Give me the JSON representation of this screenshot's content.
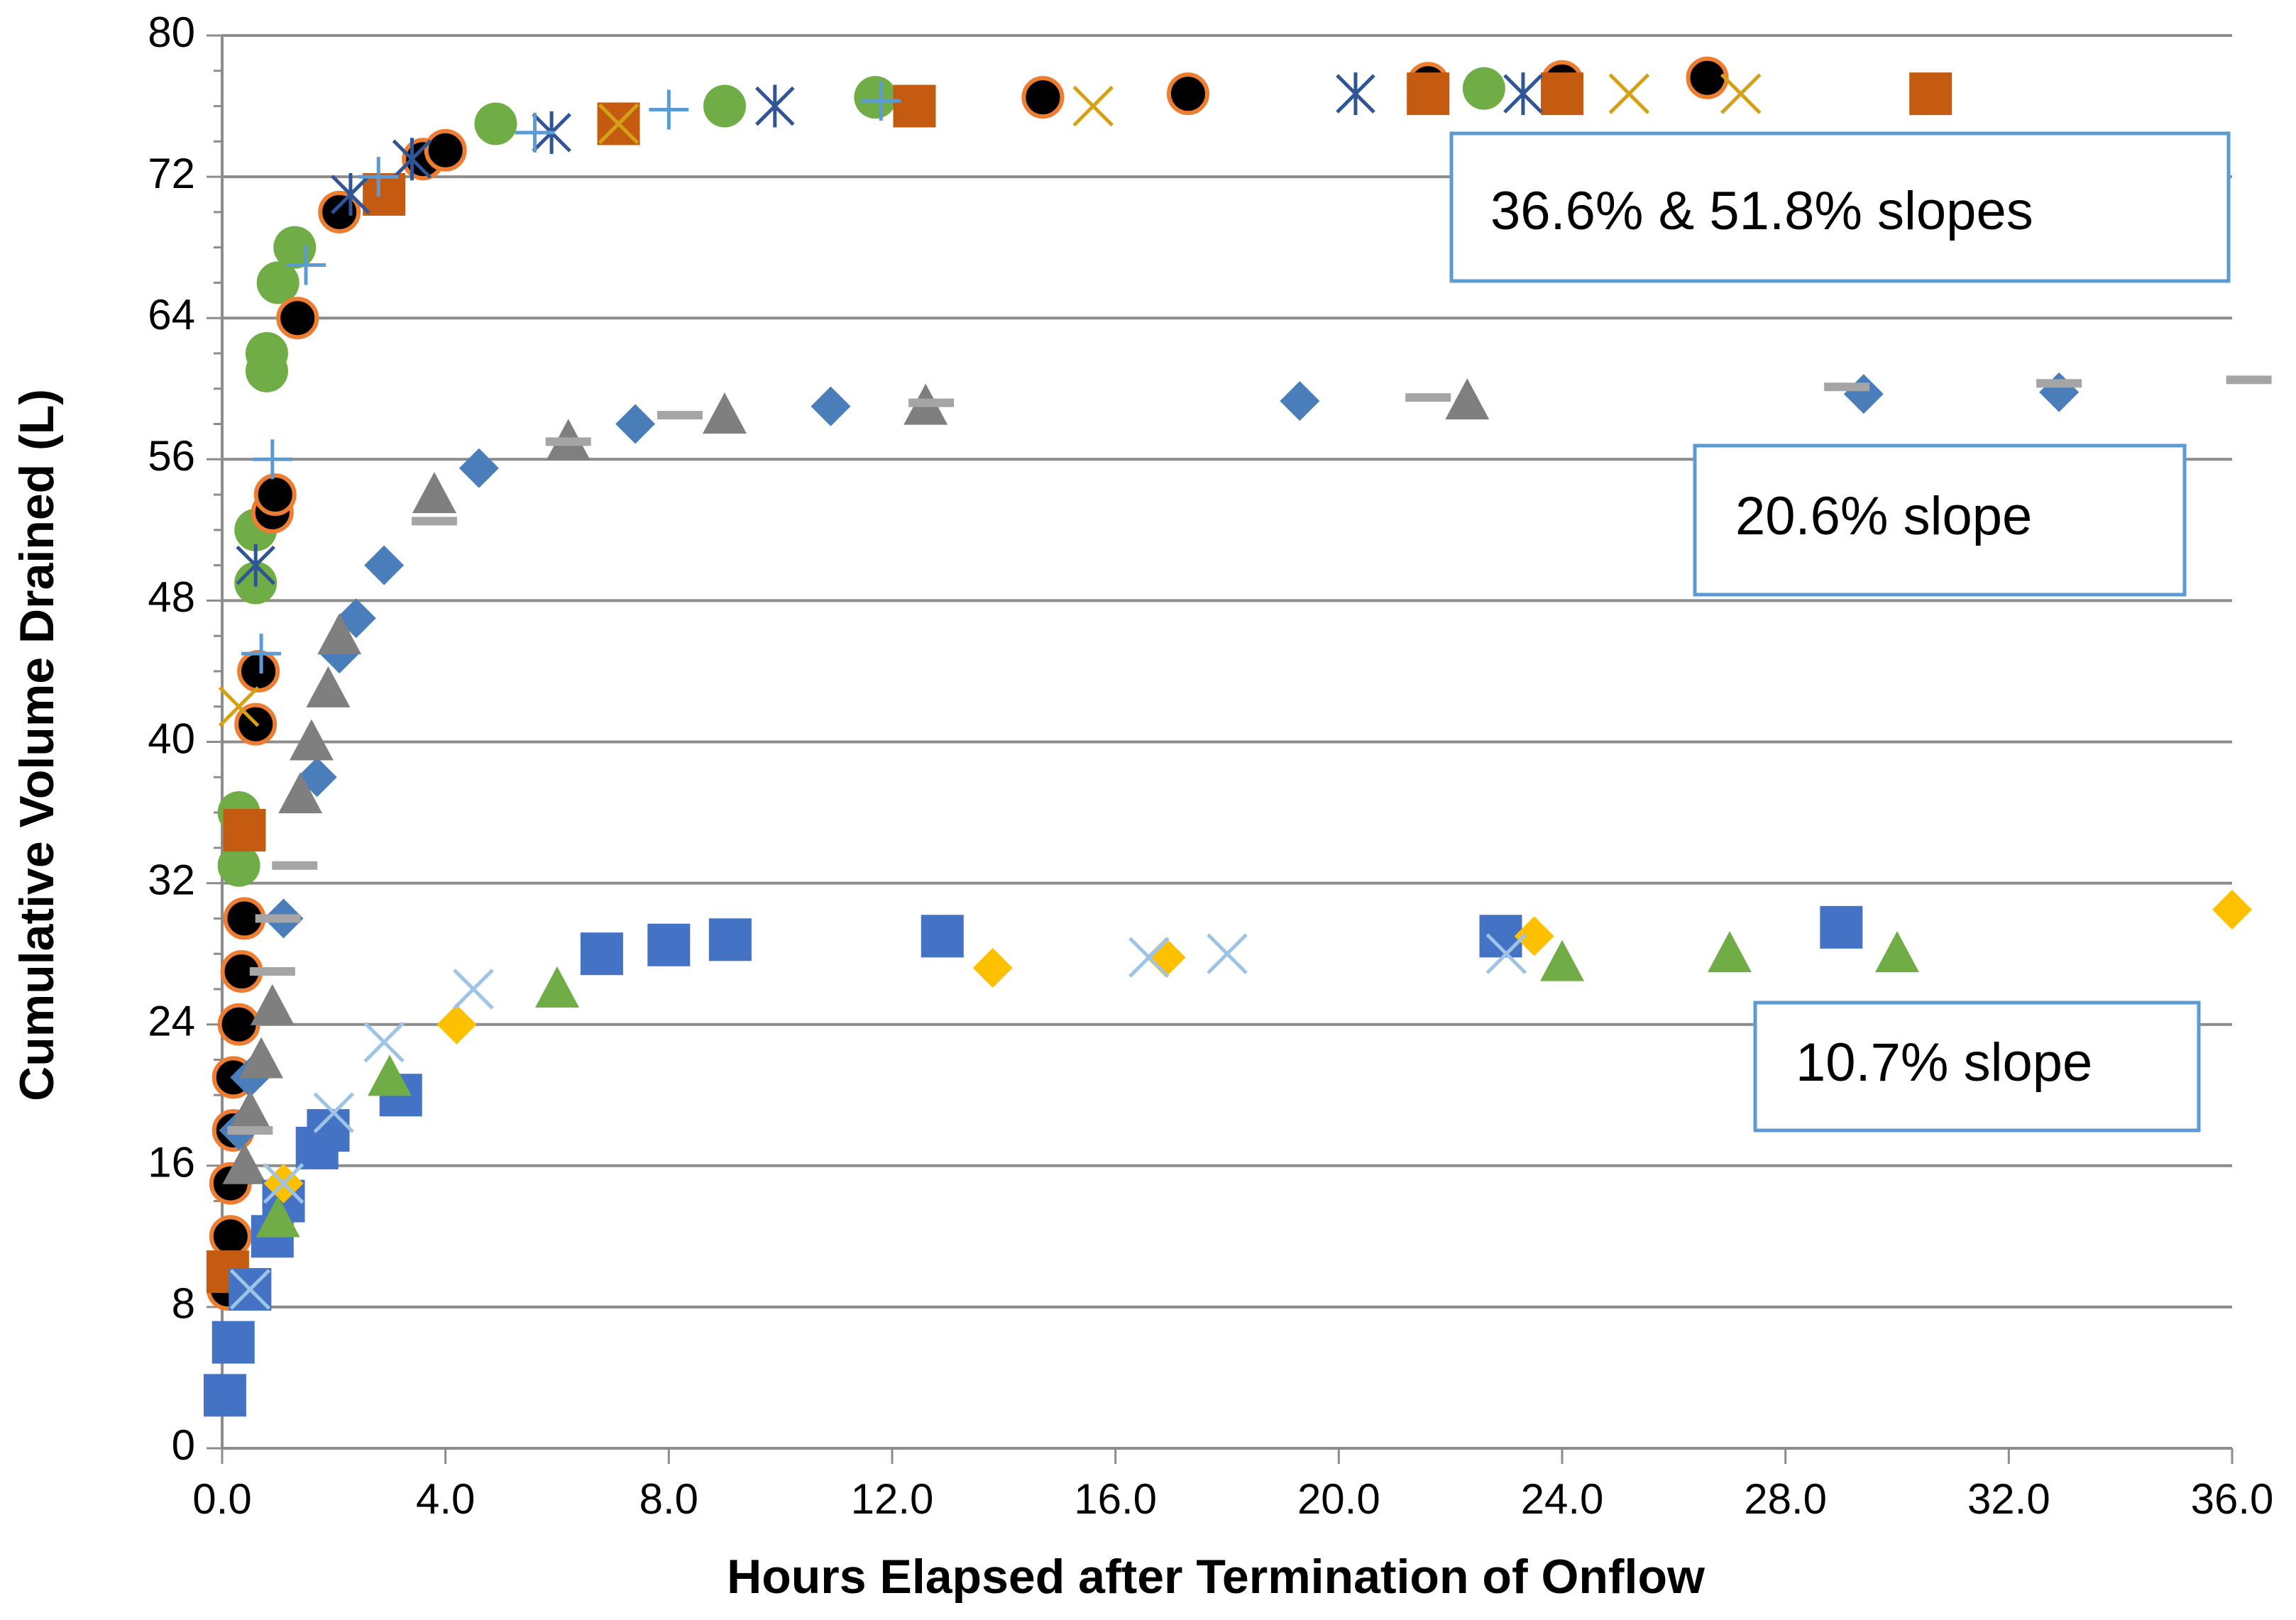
{
  "chart_data": {
    "type": "scatter",
    "title": "",
    "xlabel": "Hours Elapsed after Termination of Onflow",
    "ylabel": "Cumulative Volume Drained (L)",
    "xlim": [
      0,
      36
    ],
    "ylim": [
      0,
      80
    ],
    "x_ticks": [
      "0.0",
      "4.0",
      "8.0",
      "12.0",
      "16.0",
      "20.0",
      "24.0",
      "28.0",
      "32.0",
      "36.0"
    ],
    "y_ticks": [
      "0",
      "8",
      "16",
      "24",
      "32",
      "40",
      "48",
      "56",
      "64",
      "72",
      "80"
    ],
    "grid": "horizontal",
    "legend": "none",
    "annotations": [
      {
        "text": "36.6% & 51.8% slopes"
      },
      {
        "text": "20.6% slope"
      },
      {
        "text": "10.7% slope"
      }
    ],
    "series": [
      {
        "name": "Green circles",
        "group": "36.6% & 51.8% slopes",
        "marker": "circle",
        "color": "#70ad47",
        "x": [
          0.3,
          0.3,
          0.6,
          0.6,
          0.8,
          0.8,
          1.0,
          1.3,
          4.9,
          9.0,
          11.7,
          22.6
        ],
        "y": [
          33,
          36,
          49,
          52,
          61,
          62,
          66,
          68,
          75,
          76,
          76.5,
          77
        ]
      },
      {
        "name": "Black circles",
        "group": "36.6% & 51.8% slopes",
        "marker": "circle-outlined",
        "color": "#000000",
        "edge": "#ed7d31",
        "x": [
          0.1,
          0.15,
          0.15,
          0.2,
          0.2,
          0.3,
          0.35,
          0.4,
          0.6,
          0.65,
          0.9,
          0.95,
          1.35,
          2.1,
          3.6,
          4.0,
          14.7,
          17.3,
          21.6,
          24.0,
          26.6
        ],
        "y": [
          9,
          12,
          15,
          18,
          21,
          24,
          27,
          30,
          41,
          44,
          53,
          54,
          64,
          70,
          73,
          73.5,
          76.5,
          76.7,
          77.3,
          77.4,
          77.6
        ]
      },
      {
        "name": "Orange squares",
        "group": "36.6% & 51.8% slopes",
        "marker": "square",
        "color": "#c55a11",
        "x": [
          0.1,
          0.4,
          2.9,
          7.1,
          12.4,
          21.6,
          24.0,
          30.6
        ],
        "y": [
          10,
          35,
          71,
          75,
          76,
          76.7,
          76.7,
          76.7
        ]
      },
      {
        "name": "Gold x",
        "group": "36.6% & 51.8% slopes",
        "marker": "x",
        "color": "#d4a017",
        "x": [
          0.3,
          7.1,
          15.6,
          25.2,
          27.2
        ],
        "y": [
          42,
          75,
          76,
          76.7,
          76.7
        ]
      },
      {
        "name": "Blue star",
        "group": "36.6% & 51.8% slopes",
        "marker": "asterisk",
        "color": "#2f5597",
        "x": [
          0.6,
          2.3,
          3.4,
          5.9,
          9.9,
          20.3,
          23.3
        ],
        "y": [
          50,
          71,
          73,
          74.5,
          76,
          76.7,
          76.7
        ]
      },
      {
        "name": "Light blue plus",
        "group": "36.6% & 51.8% slopes",
        "marker": "plus",
        "color": "#5b9bd5",
        "x": [
          0.7,
          0.9,
          1.5,
          2.8,
          5.6,
          8.0,
          11.8
        ],
        "y": [
          45,
          56,
          67,
          72,
          74.5,
          75.8,
          76.3
        ]
      },
      {
        "name": "Steel blue diamonds",
        "group": "20.6% slope",
        "marker": "diamond",
        "color": "#4a7ebb",
        "x": [
          0.3,
          0.5,
          1.1,
          1.7,
          2.1,
          2.4,
          2.9,
          4.6,
          7.4,
          10.9,
          19.3,
          29.4,
          32.9
        ],
        "y": [
          18,
          21,
          30,
          38,
          45,
          47,
          50,
          55.5,
          58,
          59,
          59.3,
          59.7,
          59.8
        ]
      },
      {
        "name": "Gray triangles",
        "group": "20.6% slope",
        "marker": "triangle",
        "color": "#7f7f7f",
        "x": [
          0.4,
          0.5,
          0.7,
          0.9,
          1.4,
          1.6,
          1.9,
          2.1,
          3.8,
          6.2,
          9.0,
          12.6,
          22.3
        ],
        "y": [
          16,
          19,
          22,
          25,
          37,
          40,
          43,
          46,
          54,
          57,
          58.5,
          59,
          59.3
        ]
      },
      {
        "name": "Gray dashes",
        "group": "20.6% slope",
        "marker": "dash",
        "color": "#a5a5a5",
        "x": [
          0.5,
          0.9,
          1.0,
          1.3,
          3.8,
          6.2,
          8.2,
          12.7,
          21.6,
          29.1,
          32.9,
          36.3
        ],
        "y": [
          18,
          27,
          30,
          33,
          52.5,
          57,
          58.5,
          59.2,
          59.5,
          60.1,
          60.3,
          60.5
        ]
      },
      {
        "name": "Blue squares",
        "group": "10.7% slope",
        "marker": "square",
        "color": "#4472c4",
        "x": [
          0.05,
          0.2,
          0.5,
          0.9,
          1.1,
          1.7,
          1.9,
          3.2,
          6.8,
          8.0,
          9.1,
          12.9,
          22.9,
          29.0
        ],
        "y": [
          3,
          6,
          9,
          12,
          14,
          17,
          18,
          20,
          28,
          28.5,
          28.8,
          29,
          29,
          29.5
        ]
      },
      {
        "name": "Yellow diamonds",
        "group": "10.7% slope",
        "marker": "diamond",
        "color": "#ffc000",
        "x": [
          1.1,
          4.2,
          13.8,
          16.9,
          23.5,
          36.0
        ],
        "y": [
          15,
          24,
          27.2,
          27.8,
          29,
          30.5
        ]
      },
      {
        "name": "Light blue x",
        "group": "10.7% slope",
        "marker": "x",
        "color": "#9dc3e6",
        "x": [
          0.5,
          1.1,
          2.0,
          2.9,
          4.5,
          16.6,
          18.0,
          23.0
        ],
        "y": [
          9,
          15,
          19,
          23,
          26,
          27.8,
          28,
          28
        ]
      },
      {
        "name": "Green triangles",
        "group": "10.7% slope",
        "marker": "triangle",
        "color": "#70ad47",
        "x": [
          1.0,
          3.0,
          6.0,
          24.0,
          27.0,
          30.0
        ],
        "y": [
          13,
          21,
          26,
          27.5,
          28,
          28
        ]
      }
    ]
  }
}
